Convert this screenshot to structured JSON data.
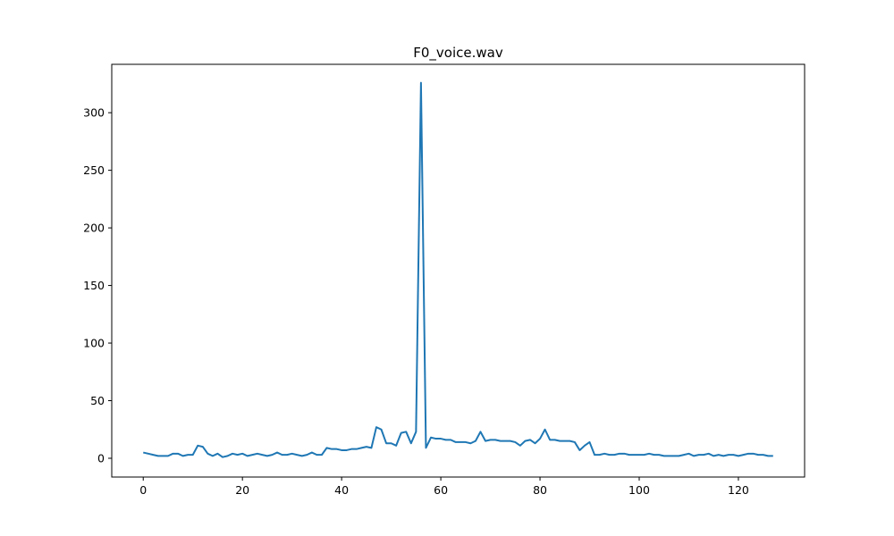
{
  "chart_data": {
    "type": "line",
    "title": "F0_voice.wav",
    "xlabel": "",
    "ylabel": "",
    "xlim": [
      -6.35,
      133.35
    ],
    "ylim": [
      -16.3,
      342.0
    ],
    "xticks": [
      0,
      20,
      40,
      60,
      80,
      100,
      120
    ],
    "yticks": [
      0,
      50,
      100,
      150,
      200,
      250,
      300
    ],
    "grid": false,
    "legend": "none",
    "colors": {
      "line": "#1f77b4",
      "axes": "#000000",
      "background": "#ffffff"
    },
    "series": [
      {
        "x": [
          0,
          1,
          2,
          3,
          4,
          5,
          6,
          7,
          8,
          9,
          10,
          11,
          12,
          13,
          14,
          15,
          16,
          17,
          18,
          19,
          20,
          21,
          22,
          23,
          24,
          25,
          26,
          27,
          28,
          29,
          30,
          31,
          32,
          33,
          34,
          35,
          36,
          37,
          38,
          39,
          40,
          41,
          42,
          43,
          44,
          45,
          46,
          47,
          48,
          49,
          50,
          51,
          52,
          53,
          54,
          55,
          56,
          57,
          58,
          59,
          60,
          61,
          62,
          63,
          64,
          65,
          66,
          67,
          68,
          69,
          70,
          71,
          72,
          73,
          74,
          75,
          76,
          77,
          78,
          79,
          80,
          81,
          82,
          83,
          84,
          85,
          86,
          87,
          88,
          89,
          90,
          91,
          92,
          93,
          94,
          95,
          96,
          97,
          98,
          99,
          100,
          101,
          102,
          103,
          104,
          105,
          106,
          107,
          108,
          109,
          110,
          111,
          112,
          113,
          114,
          115,
          116,
          117,
          118,
          119,
          120,
          121,
          122,
          123,
          124,
          125,
          126,
          127
        ],
        "values": [
          5,
          4,
          3,
          2,
          2,
          2,
          4,
          4,
          2,
          3,
          3,
          11,
          10,
          4,
          2,
          4,
          1,
          2,
          4,
          3,
          4,
          2,
          3,
          4,
          3,
          2,
          3,
          5,
          3,
          3,
          4,
          3,
          2,
          3,
          5,
          3,
          3,
          9,
          8,
          8,
          7,
          7,
          8,
          8,
          9,
          10,
          9,
          27,
          25,
          13,
          13,
          11,
          22,
          23,
          13,
          23,
          326,
          9,
          18,
          17,
          17,
          16,
          16,
          14,
          14,
          14,
          13,
          15,
          23,
          15,
          16,
          16,
          15,
          15,
          15,
          14,
          11,
          15,
          16,
          13,
          17,
          25,
          16,
          16,
          15,
          15,
          15,
          14,
          7,
          11,
          14,
          3,
          3,
          4,
          3,
          3,
          4,
          4,
          3,
          3,
          3,
          3,
          4,
          3,
          3,
          2,
          2,
          2,
          2,
          3,
          4,
          2,
          3,
          3,
          4,
          2,
          3,
          2,
          3,
          3,
          2,
          3,
          4,
          4,
          3,
          3,
          2,
          2
        ]
      }
    ]
  }
}
